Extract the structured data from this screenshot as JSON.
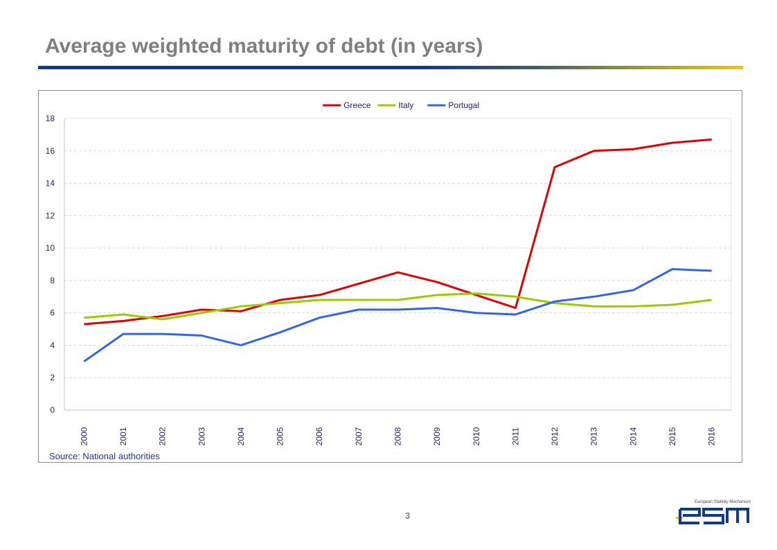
{
  "slide": {
    "title": "Average weighted maturity of debt (in years)",
    "source": "Source: National authorities",
    "page_number": "3",
    "logo_caption": "European Stability Mechanism",
    "logo_text": "esm"
  },
  "colors": {
    "title": "#7f7f7f",
    "rule_start": "#0f3a8c",
    "rule_end": "#f1c400",
    "axis_text": "#1f1f6b",
    "gridline": "#d9d9d9"
  },
  "chart_data": {
    "type": "line",
    "title": "",
    "xlabel": "",
    "ylabel": "",
    "categories": [
      "2000",
      "2001",
      "2002",
      "2003",
      "2004",
      "2005",
      "2006",
      "2007",
      "2008",
      "2009",
      "2010",
      "2011",
      "2012",
      "2013",
      "2014",
      "2015",
      "2016"
    ],
    "ylim": [
      0,
      18
    ],
    "yticks": [
      0,
      2,
      4,
      6,
      8,
      10,
      12,
      14,
      16,
      18
    ],
    "grid": true,
    "legend_position": "top-center",
    "series": [
      {
        "name": "Greece",
        "color": "#e10000",
        "values": [
          5.3,
          5.5,
          5.8,
          6.2,
          6.1,
          6.8,
          7.1,
          7.8,
          8.5,
          7.9,
          7.1,
          6.3,
          15.0,
          16.0,
          16.1,
          16.5,
          16.7
        ]
      },
      {
        "name": "Italy",
        "color": "#99cc00",
        "values": [
          5.7,
          5.9,
          5.6,
          6.0,
          6.4,
          6.6,
          6.8,
          6.8,
          6.8,
          7.1,
          7.2,
          7.0,
          6.6,
          6.4,
          6.4,
          6.5,
          6.8
        ]
      },
      {
        "name": "Portugal",
        "color": "#3366e6",
        "values": [
          3.0,
          4.7,
          4.7,
          4.6,
          4.0,
          4.8,
          5.7,
          6.2,
          6.2,
          6.3,
          6.0,
          5.9,
          6.7,
          7.0,
          7.4,
          8.7,
          8.6
        ]
      }
    ]
  }
}
